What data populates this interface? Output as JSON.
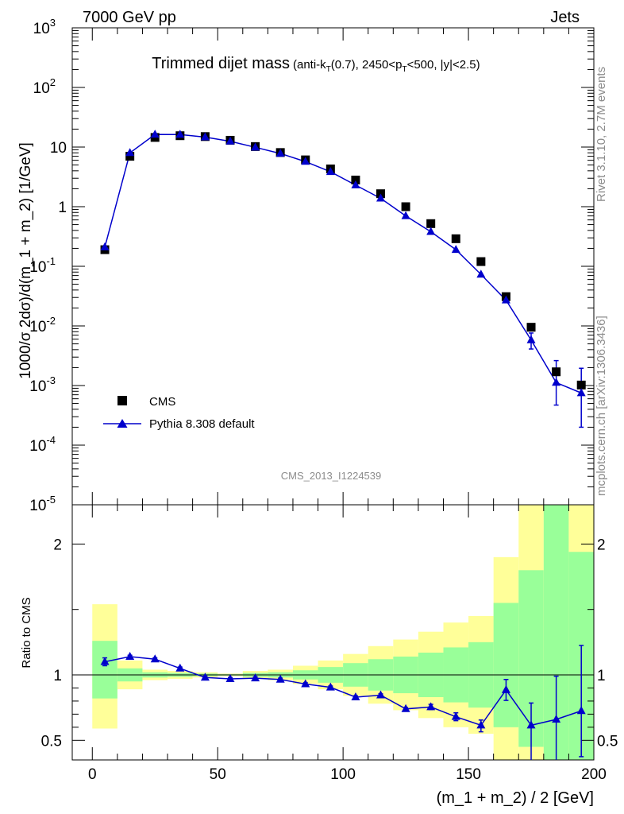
{
  "header": {
    "left": "7000 GeV pp",
    "right": "Jets"
  },
  "side_labels": {
    "rivet": "Rivet 3.1.10,  2.7M events",
    "mcplots": "mcplots.cern.ch [arXiv:1306.3436]"
  },
  "colors": {
    "cms": "#000000",
    "pythia": "#0000cc",
    "band_inner": "#99ff99",
    "band_outer": "#ffff99",
    "watermark": "#8c8c8c"
  },
  "chart_data": [
    {
      "type": "scatter",
      "title": "Trimmed dijet mass",
      "title_note": "(anti-k_T(0.7), 2450<p_T<500, |y|<2.5)",
      "watermark": "CMS_2013_I1224539",
      "ylabel": "1000/σ 2dσ)/d(m_1 + m_2) [1/GeV]",
      "xlabel": "",
      "log_y": true,
      "xlim": [
        -8,
        200
      ],
      "ylim": [
        1e-05,
        1000
      ],
      "y_ticks": [
        "10^-5",
        "10^-4",
        "10^-3",
        "10^-2",
        "10^-1",
        "1",
        "10",
        "10^2",
        "10^3"
      ],
      "legend_position": "bottom-left",
      "series": [
        {
          "name": "CMS",
          "marker": "square",
          "x": [
            5,
            15,
            25,
            35,
            45,
            55,
            65,
            75,
            85,
            95,
            105,
            115,
            125,
            135,
            145,
            155,
            165,
            175,
            185,
            195
          ],
          "y": [
            0.19,
            7,
            14.5,
            15.5,
            15,
            13,
            10.2,
            8.1,
            6.1,
            4.3,
            2.8,
            1.65,
            1.0,
            0.52,
            0.29,
            0.12,
            0.031,
            0.0095,
            0.0017,
            0.00102
          ]
        },
        {
          "name": "Pythia 8.308 default",
          "marker": "triangle",
          "x": [
            5,
            15,
            25,
            35,
            45,
            55,
            65,
            75,
            85,
            95,
            105,
            115,
            125,
            135,
            145,
            155,
            165,
            175,
            185,
            195
          ],
          "y": [
            0.21,
            8,
            16.3,
            16.2,
            14.7,
            12.5,
            9.9,
            7.8,
            5.7,
            3.85,
            2.3,
            1.38,
            0.7,
            0.38,
            0.19,
            0.073,
            0.027,
            0.0058,
            0.00112,
            0.00075
          ],
          "y_err_low": [
            0,
            0,
            0,
            0,
            0,
            0,
            0,
            0,
            0,
            0,
            0,
            0,
            0,
            0,
            0,
            0,
            0,
            0.0017,
            0.00065,
            0.00055
          ],
          "y_err_high": [
            0,
            0,
            0,
            0,
            0,
            0,
            0,
            0,
            0,
            0,
            0,
            0,
            0,
            0,
            0,
            0,
            0,
            0.0018,
            0.0015,
            0.0012
          ]
        }
      ]
    },
    {
      "type": "line",
      "xlabel": "(m_1 + m_2) / 2 [GeV]",
      "ylabel": "Ratio to CMS",
      "xlim": [
        -8,
        200
      ],
      "ylim": [
        0.35,
        2.3
      ],
      "x_ticks": [
        "0",
        "50",
        "100",
        "150",
        "200"
      ],
      "y_ticks": [
        "0.5",
        "1",
        "2"
      ],
      "bands": {
        "bin_edges": [
          0,
          10,
          20,
          30,
          40,
          50,
          60,
          70,
          80,
          90,
          100,
          110,
          120,
          130,
          140,
          150,
          160,
          170,
          180,
          190,
          200
        ],
        "outer_low": [
          0.59,
          0.89,
          0.96,
          0.97,
          0.98,
          0.99,
          0.97,
          0.96,
          0.93,
          0.89,
          0.84,
          0.78,
          0.73,
          0.67,
          0.6,
          0.55,
          0.35,
          0.35,
          0.35,
          0.35
        ],
        "outer_high": [
          1.54,
          1.11,
          1.04,
          1.03,
          1.02,
          1.01,
          1.03,
          1.04,
          1.07,
          1.11,
          1.16,
          1.22,
          1.27,
          1.33,
          1.4,
          1.45,
          1.9,
          2.3,
          2.3,
          2.3
        ],
        "inner_low": [
          0.82,
          0.95,
          0.98,
          0.985,
          0.99,
          0.995,
          0.985,
          0.98,
          0.965,
          0.94,
          0.91,
          0.88,
          0.86,
          0.83,
          0.79,
          0.75,
          0.6,
          0.45,
          0.35,
          0.35
        ],
        "inner_high": [
          1.26,
          1.05,
          1.02,
          1.015,
          1.01,
          1.005,
          1.015,
          1.02,
          1.035,
          1.06,
          1.09,
          1.12,
          1.14,
          1.17,
          1.21,
          1.25,
          1.55,
          1.8,
          2.3,
          1.94
        ]
      },
      "series": [
        {
          "name": "Pythia 8.308 default",
          "marker": "triangle",
          "x": [
            5,
            15,
            25,
            35,
            45,
            55,
            65,
            75,
            85,
            95,
            105,
            115,
            125,
            135,
            145,
            155,
            165,
            175,
            185,
            195
          ],
          "y": [
            1.1,
            1.14,
            1.12,
            1.05,
            0.98,
            0.97,
            0.975,
            0.965,
            0.93,
            0.905,
            0.83,
            0.845,
            0.74,
            0.755,
            0.68,
            0.615,
            0.885,
            0.615,
            0.66,
            0.725
          ],
          "y_err_low": [
            0.03,
            0.01,
            0.01,
            0.01,
            0.01,
            0.01,
            0.01,
            0.01,
            0.01,
            0.01,
            0.01,
            0.01,
            0.01,
            0.02,
            0.03,
            0.05,
            0.08,
            0.27,
            0.35,
            0.35
          ],
          "y_err_high": [
            0.03,
            0.01,
            0.01,
            0.01,
            0.01,
            0.01,
            0.01,
            0.01,
            0.01,
            0.01,
            0.01,
            0.01,
            0.01,
            0.02,
            0.03,
            0.04,
            0.08,
            0.17,
            0.33,
            0.5
          ]
        }
      ]
    }
  ]
}
